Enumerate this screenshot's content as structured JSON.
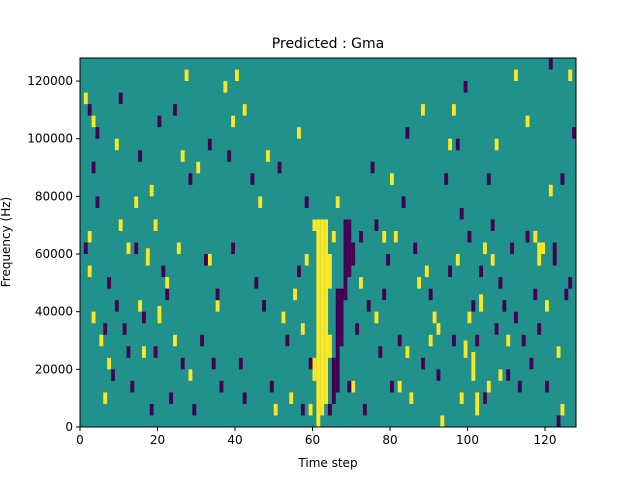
{
  "chart_data": {
    "type": "heatmap",
    "title": "Predicted : Gma",
    "xlabel": "Time step",
    "ylabel": "Frequency (Hz)",
    "xlim": [
      0,
      128
    ],
    "ylim": [
      0,
      128000
    ],
    "x_ticks": [
      0,
      20,
      40,
      60,
      80,
      100,
      120
    ],
    "x_tick_labels": [
      "0",
      "20",
      "40",
      "60",
      "80",
      "100",
      "120"
    ],
    "y_ticks": [
      0,
      20000,
      40000,
      60000,
      80000,
      100000,
      120000
    ],
    "y_tick_labels": [
      "0",
      "20000",
      "40000",
      "60000",
      "80000",
      "100000",
      "120000"
    ],
    "grid": false,
    "colormap": {
      "background": "#21918c",
      "low": "#440154",
      "high": "#fde725"
    },
    "note_high_cells": [
      [
        1,
        112000,
        4000
      ],
      [
        2,
        52000,
        4000
      ],
      [
        2,
        64000,
        4000
      ],
      [
        3,
        104000,
        4000
      ],
      [
        3,
        36000,
        4000
      ],
      [
        5,
        28000,
        4000
      ],
      [
        6,
        8000,
        4000
      ],
      [
        7,
        20000,
        4000
      ],
      [
        9,
        96000,
        4000
      ],
      [
        10,
        68000,
        4000
      ],
      [
        12,
        60000,
        4000
      ],
      [
        14,
        76000,
        4000
      ],
      [
        15,
        40000,
        4000
      ],
      [
        16,
        24000,
        4000
      ],
      [
        17,
        56000,
        6000
      ],
      [
        18,
        80000,
        4000
      ],
      [
        19,
        68000,
        4000
      ],
      [
        20,
        36000,
        6000
      ],
      [
        22,
        48000,
        4000
      ],
      [
        24,
        28000,
        4000
      ],
      [
        25,
        60000,
        4000
      ],
      [
        26,
        92000,
        4000
      ],
      [
        27,
        120000,
        4000
      ],
      [
        28,
        16000,
        4000
      ],
      [
        30,
        88000,
        4000
      ],
      [
        33,
        56000,
        4000
      ],
      [
        35,
        40000,
        4000
      ],
      [
        37,
        116000,
        4000
      ],
      [
        39,
        104000,
        4000
      ],
      [
        40,
        120000,
        4000
      ],
      [
        42,
        108000,
        4000
      ],
      [
        46,
        76000,
        4000
      ],
      [
        48,
        92000,
        4000
      ],
      [
        50,
        4000,
        4000
      ],
      [
        52,
        36000,
        4000
      ],
      [
        54,
        8000,
        4000
      ],
      [
        55,
        44000,
        4000
      ],
      [
        56,
        100000,
        4000
      ],
      [
        57,
        32000,
        4000
      ],
      [
        58,
        56000,
        4000
      ],
      [
        59,
        4000,
        4000
      ],
      [
        60,
        68000,
        4000
      ],
      [
        60,
        16000,
        8000
      ],
      [
        61,
        0,
        72000
      ],
      [
        62,
        4000,
        68000
      ],
      [
        63,
        8000,
        64000
      ],
      [
        64,
        24000,
        8000
      ],
      [
        64,
        48000,
        12000
      ],
      [
        65,
        64000,
        4000
      ],
      [
        66,
        76000,
        4000
      ],
      [
        70,
        12000,
        4000
      ],
      [
        72,
        48000,
        4000
      ],
      [
        76,
        36000,
        4000
      ],
      [
        78,
        64000,
        4000
      ],
      [
        80,
        84000,
        4000
      ],
      [
        81,
        64000,
        4000
      ],
      [
        82,
        12000,
        4000
      ],
      [
        84,
        24000,
        4000
      ],
      [
        85,
        8000,
        4000
      ],
      [
        87,
        48000,
        4000
      ],
      [
        88,
        108000,
        4000
      ],
      [
        89,
        52000,
        4000
      ],
      [
        90,
        28000,
        4000
      ],
      [
        91,
        36000,
        4000
      ],
      [
        92,
        32000,
        4000
      ],
      [
        93,
        0,
        4000
      ],
      [
        95,
        96000,
        4000
      ],
      [
        96,
        108000,
        4000
      ],
      [
        97,
        56000,
        4000
      ],
      [
        98,
        8000,
        4000
      ],
      [
        99,
        24000,
        6000
      ],
      [
        100,
        36000,
        4000
      ],
      [
        101,
        16000,
        10000
      ],
      [
        102,
        4000,
        8000
      ],
      [
        103,
        40000,
        6000
      ],
      [
        104,
        60000,
        4000
      ],
      [
        105,
        12000,
        4000
      ],
      [
        106,
        56000,
        4000
      ],
      [
        107,
        96000,
        4000
      ],
      [
        108,
        16000,
        4000
      ],
      [
        110,
        28000,
        4000
      ],
      [
        112,
        120000,
        4000
      ],
      [
        115,
        104000,
        4000
      ],
      [
        117,
        64000,
        4000
      ],
      [
        118,
        56000,
        8000
      ],
      [
        119,
        60000,
        4000
      ],
      [
        120,
        40000,
        4000
      ],
      [
        121,
        80000,
        4000
      ],
      [
        123,
        24000,
        4000
      ],
      [
        124,
        4000,
        4000
      ],
      [
        126,
        120000,
        4000
      ]
    ],
    "note_low_cells": [
      [
        1,
        60000,
        4000
      ],
      [
        2,
        108000,
        4000
      ],
      [
        3,
        88000,
        4000
      ],
      [
        4,
        76000,
        4000
      ],
      [
        4,
        100000,
        4000
      ],
      [
        6,
        32000,
        4000
      ],
      [
        7,
        48000,
        4000
      ],
      [
        8,
        16000,
        4000
      ],
      [
        9,
        40000,
        4000
      ],
      [
        10,
        112000,
        4000
      ],
      [
        11,
        32000,
        4000
      ],
      [
        12,
        24000,
        4000
      ],
      [
        13,
        12000,
        4000
      ],
      [
        14,
        60000,
        4000
      ],
      [
        15,
        92000,
        4000
      ],
      [
        16,
        36000,
        4000
      ],
      [
        18,
        4000,
        4000
      ],
      [
        19,
        24000,
        4000
      ],
      [
        20,
        104000,
        4000
      ],
      [
        21,
        52000,
        4000
      ],
      [
        22,
        44000,
        4000
      ],
      [
        23,
        8000,
        4000
      ],
      [
        24,
        108000,
        4000
      ],
      [
        26,
        20000,
        4000
      ],
      [
        28,
        84000,
        4000
      ],
      [
        29,
        4000,
        4000
      ],
      [
        31,
        28000,
        4000
      ],
      [
        32,
        56000,
        4000
      ],
      [
        33,
        96000,
        4000
      ],
      [
        34,
        20000,
        4000
      ],
      [
        35,
        44000,
        4000
      ],
      [
        36,
        12000,
        4000
      ],
      [
        38,
        92000,
        4000
      ],
      [
        39,
        60000,
        4000
      ],
      [
        41,
        20000,
        4000
      ],
      [
        42,
        8000,
        4000
      ],
      [
        44,
        84000,
        4000
      ],
      [
        45,
        48000,
        4000
      ],
      [
        47,
        40000,
        4000
      ],
      [
        49,
        12000,
        4000
      ],
      [
        51,
        88000,
        4000
      ],
      [
        53,
        28000,
        4000
      ],
      [
        56,
        52000,
        4000
      ],
      [
        57,
        4000,
        4000
      ],
      [
        58,
        76000,
        4000
      ],
      [
        59,
        20000,
        4000
      ],
      [
        64,
        4000,
        4000
      ],
      [
        65,
        8000,
        16000
      ],
      [
        66,
        12000,
        36000
      ],
      [
        67,
        28000,
        20000
      ],
      [
        68,
        44000,
        28000
      ],
      [
        69,
        52000,
        20000
      ],
      [
        69,
        12000,
        4000
      ],
      [
        70,
        56000,
        8000
      ],
      [
        71,
        32000,
        4000
      ],
      [
        72,
        64000,
        4000
      ],
      [
        73,
        4000,
        4000
      ],
      [
        74,
        40000,
        4000
      ],
      [
        75,
        88000,
        4000
      ],
      [
        76,
        68000,
        4000
      ],
      [
        77,
        24000,
        4000
      ],
      [
        78,
        44000,
        4000
      ],
      [
        79,
        56000,
        4000
      ],
      [
        80,
        12000,
        4000
      ],
      [
        82,
        28000,
        4000
      ],
      [
        83,
        76000,
        4000
      ],
      [
        84,
        100000,
        4000
      ],
      [
        86,
        60000,
        4000
      ],
      [
        88,
        20000,
        4000
      ],
      [
        90,
        44000,
        4000
      ],
      [
        92,
        16000,
        4000
      ],
      [
        94,
        84000,
        4000
      ],
      [
        95,
        52000,
        4000
      ],
      [
        96,
        28000,
        4000
      ],
      [
        97,
        96000,
        4000
      ],
      [
        98,
        72000,
        4000
      ],
      [
        99,
        116000,
        4000
      ],
      [
        100,
        64000,
        4000
      ],
      [
        101,
        40000,
        4000
      ],
      [
        102,
        28000,
        4000
      ],
      [
        103,
        52000,
        4000
      ],
      [
        104,
        8000,
        4000
      ],
      [
        105,
        84000,
        4000
      ],
      [
        106,
        68000,
        4000
      ],
      [
        107,
        32000,
        4000
      ],
      [
        108,
        48000,
        4000
      ],
      [
        109,
        40000,
        4000
      ],
      [
        110,
        16000,
        4000
      ],
      [
        111,
        60000,
        4000
      ],
      [
        112,
        36000,
        4000
      ],
      [
        113,
        12000,
        4000
      ],
      [
        114,
        28000,
        4000
      ],
      [
        115,
        64000,
        4000
      ],
      [
        116,
        20000,
        4000
      ],
      [
        117,
        44000,
        4000
      ],
      [
        118,
        32000,
        4000
      ],
      [
        120,
        12000,
        4000
      ],
      [
        121,
        124000,
        4000
      ],
      [
        122,
        56000,
        8000
      ],
      [
        123,
        0,
        4000
      ],
      [
        124,
        84000,
        4000
      ],
      [
        125,
        44000,
        4000
      ],
      [
        126,
        48000,
        4000
      ],
      [
        127,
        100000,
        4000
      ]
    ]
  }
}
